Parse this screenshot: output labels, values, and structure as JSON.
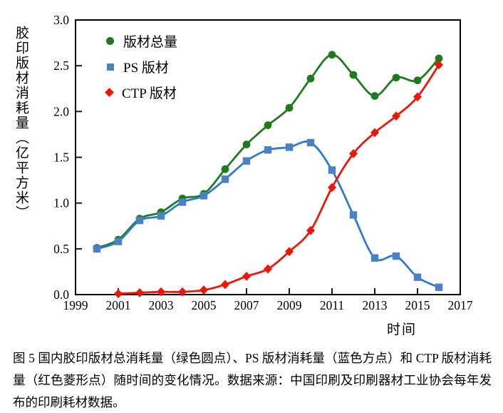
{
  "figure": {
    "caption": "图 5 国内胶印版材总消耗量（绿色圆点）、PS 版材消耗量（蓝色方点）和 CTP 版材消耗量（红色菱形点）随时间的变化情况。数据来源：中国印刷及印刷器材工业协会每年发布的印刷耗材数据。"
  },
  "chart_data": {
    "type": "scatter",
    "title": "",
    "xlabel": "时间",
    "ylabel": "胶印版材消耗量（亿平方米）",
    "xlim": [
      1999,
      2017
    ],
    "ylim": [
      0.0,
      3.0
    ],
    "x_ticks": [
      1999,
      2001,
      2003,
      2005,
      2007,
      2009,
      2011,
      2013,
      2015,
      2017
    ],
    "y_ticks": [
      "0.0",
      "0.5",
      "1.0",
      "1.5",
      "2.0",
      "2.5",
      "3.0"
    ],
    "grid": false,
    "legend_position": "top-left-inside",
    "axis_color": "#000000",
    "series": [
      {
        "name": "版材总量",
        "marker": "circle",
        "line_color": "#1f7a1f",
        "marker_color": "#1f7a1f",
        "x": [
          2000,
          2001,
          2002,
          2003,
          2004,
          2005,
          2006,
          2007,
          2008,
          2009,
          2010,
          2011,
          2012,
          2013,
          2014,
          2015,
          2016
        ],
        "y": [
          0.51,
          0.6,
          0.83,
          0.9,
          1.05,
          1.1,
          1.37,
          1.64,
          1.85,
          2.04,
          2.36,
          2.62,
          2.4,
          2.17,
          2.37,
          2.34,
          2.58
        ]
      },
      {
        "name": "PS 版材",
        "marker": "square",
        "line_color": "#2b7ccd",
        "marker_color": "#4a80c4",
        "x": [
          2000,
          2001,
          2002,
          2003,
          2004,
          2005,
          2006,
          2007,
          2008,
          2009,
          2010,
          2011,
          2012,
          2013,
          2014,
          2015,
          2016
        ],
        "y": [
          0.5,
          0.58,
          0.81,
          0.86,
          1.01,
          1.08,
          1.26,
          1.46,
          1.58,
          1.61,
          1.66,
          1.36,
          0.87,
          0.4,
          0.42,
          0.19,
          0.08
        ]
      },
      {
        "name": "CTP 版材",
        "marker": "diamond",
        "line_color": "#ee1509",
        "marker_color": "#ee1509",
        "x": [
          2001,
          2002,
          2003,
          2004,
          2005,
          2006,
          2007,
          2008,
          2009,
          2010,
          2011,
          2012,
          2013,
          2014,
          2015,
          2016
        ],
        "y": [
          0.01,
          0.02,
          0.03,
          0.03,
          0.05,
          0.11,
          0.2,
          0.28,
          0.47,
          0.7,
          1.17,
          1.54,
          1.77,
          1.95,
          2.16,
          2.51
        ]
      }
    ]
  }
}
